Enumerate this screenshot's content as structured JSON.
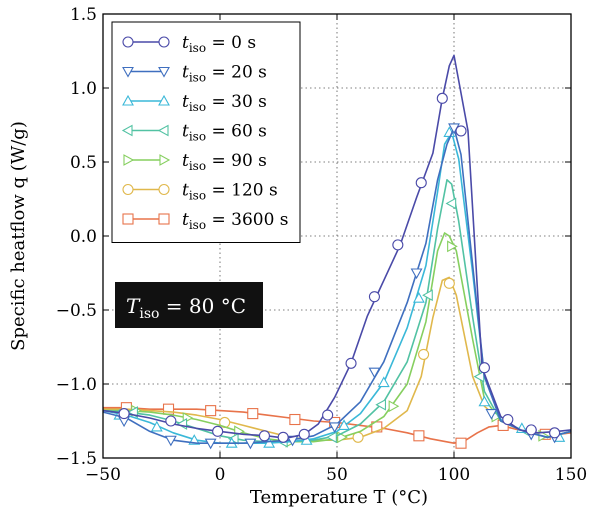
{
  "chart_data": {
    "type": "line",
    "xlabel": "Temperature T (°C)",
    "ylabel": "Specific heatflow q (W/g)",
    "xlim": [
      -50,
      150
    ],
    "ylim": [
      -1.5,
      1.5
    ],
    "xticks": [
      -50,
      0,
      50,
      100,
      150
    ],
    "yticks": [
      -1.5,
      -1.0,
      -0.5,
      0.0,
      0.5,
      1.0,
      1.5
    ],
    "xtick_labels": [
      "−50",
      "0",
      "50",
      "100",
      "150"
    ],
    "ytick_labels": [
      "−1.5",
      "−1.0",
      "−0.5",
      "0.0",
      "0.5",
      "1.0",
      "1.5"
    ],
    "grid": true,
    "legend_position": "top-left",
    "annotation": "T_iso = 80 °C",
    "series": [
      {
        "name": "t_iso = 0 s",
        "color": "#4a4aa8",
        "marker": "circle",
        "x": [
          -50,
          -40,
          -30,
          -20,
          -10,
          0,
          10,
          20,
          25,
          30,
          36,
          42,
          49,
          56,
          63,
          70,
          77,
          84,
          91,
          95,
          98,
          100,
          102,
          106,
          112,
          120,
          128,
          136,
          144,
          150
        ],
        "y": [
          -1.18,
          -1.2,
          -1.23,
          -1.27,
          -1.3,
          -1.32,
          -1.34,
          -1.35,
          -1.36,
          -1.36,
          -1.34,
          -1.27,
          -1.09,
          -0.86,
          -0.54,
          -0.3,
          -0.06,
          0.26,
          0.56,
          0.93,
          1.15,
          1.22,
          1.05,
          0.71,
          -0.89,
          -1.22,
          -1.31,
          -1.33,
          -1.32,
          -1.31
        ],
        "markers_x": [
          -41,
          -21,
          -1,
          19,
          27,
          36,
          46,
          56,
          66,
          76,
          86,
          95,
          103,
          113,
          123,
          133,
          143
        ],
        "markers_y": [
          -1.2,
          -1.25,
          -1.32,
          -1.35,
          -1.36,
          -1.34,
          -1.21,
          -0.86,
          -0.41,
          -0.06,
          0.36,
          0.93,
          0.71,
          -0.89,
          -1.24,
          -1.31,
          -1.33
        ]
      },
      {
        "name": "t_iso = 20 s",
        "color": "#3f6fbf",
        "marker": "triangle_down",
        "x": [
          -50,
          -40,
          -30,
          -20,
          -10,
          0,
          10,
          20,
          30,
          40,
          50,
          60,
          70,
          80,
          88,
          93,
          97,
          100,
          103,
          108,
          113,
          120,
          130,
          140,
          150
        ],
        "y": [
          -1.19,
          -1.23,
          -1.32,
          -1.38,
          -1.4,
          -1.4,
          -1.4,
          -1.39,
          -1.38,
          -1.35,
          -1.27,
          -1.12,
          -0.85,
          -0.45,
          -0.05,
          0.38,
          0.62,
          0.73,
          0.55,
          -0.2,
          -0.95,
          -1.25,
          -1.32,
          -1.36,
          -1.32
        ],
        "markers_x": [
          -41,
          -21,
          -4,
          13,
          31,
          49,
          66,
          84,
          100,
          116,
          133,
          143
        ],
        "markers_y": [
          -1.25,
          -1.38,
          -1.4,
          -1.4,
          -1.38,
          -1.29,
          -0.92,
          -0.25,
          0.73,
          -1.2,
          -1.34,
          -1.36
        ]
      },
      {
        "name": "t_iso = 30 s",
        "color": "#3ab8d8",
        "marker": "triangle_up",
        "x": [
          -50,
          -40,
          -30,
          -20,
          -10,
          0,
          10,
          20,
          30,
          40,
          50,
          60,
          70,
          80,
          88,
          93,
          96,
          99,
          102,
          108,
          113,
          120,
          130,
          140,
          150
        ],
        "y": [
          -1.18,
          -1.21,
          -1.26,
          -1.33,
          -1.38,
          -1.4,
          -1.4,
          -1.4,
          -1.39,
          -1.37,
          -1.32,
          -1.2,
          -0.99,
          -0.62,
          -0.2,
          0.3,
          0.62,
          0.7,
          0.52,
          -0.25,
          -0.95,
          -1.24,
          -1.32,
          -1.36,
          -1.32
        ],
        "markers_x": [
          -43,
          -27,
          -11,
          5,
          21,
          37,
          53,
          70,
          85,
          98,
          113,
          129,
          145
        ],
        "markers_y": [
          -1.21,
          -1.29,
          -1.38,
          -1.4,
          -1.4,
          -1.38,
          -1.28,
          -0.99,
          -0.42,
          0.7,
          -1.12,
          -1.3,
          -1.36
        ]
      },
      {
        "name": "t_iso = 60 s",
        "color": "#52c2a3",
        "marker": "triangle_left",
        "x": [
          -50,
          -40,
          -30,
          -20,
          -10,
          0,
          10,
          20,
          30,
          40,
          50,
          60,
          70,
          80,
          88,
          93,
          97,
          99,
          102,
          108,
          113,
          120,
          130,
          140,
          150
        ],
        "y": [
          -1.18,
          -1.19,
          -1.21,
          -1.25,
          -1.3,
          -1.35,
          -1.38,
          -1.39,
          -1.39,
          -1.38,
          -1.35,
          -1.27,
          -1.12,
          -0.85,
          -0.45,
          0.05,
          0.38,
          0.35,
          0.1,
          -0.55,
          -1.05,
          -1.25,
          -1.32,
          -1.36,
          -1.32
        ],
        "markers_x": [
          -37,
          -16,
          6,
          27,
          48,
          69,
          89,
          99,
          111,
          131
        ],
        "markers_y": [
          -1.19,
          -1.27,
          -1.37,
          -1.39,
          -1.36,
          -1.14,
          -0.4,
          0.22,
          -0.95,
          -1.32
        ]
      },
      {
        "name": "t_iso = 90 s",
        "color": "#86cf5f",
        "marker": "triangle_right",
        "x": [
          -50,
          -40,
          -30,
          -20,
          -10,
          0,
          10,
          20,
          30,
          40,
          50,
          60,
          70,
          80,
          88,
          93,
          96,
          98,
          101,
          108,
          113,
          120,
          130,
          140,
          150
        ],
        "y": [
          -1.18,
          -1.18,
          -1.19,
          -1.21,
          -1.24,
          -1.28,
          -1.33,
          -1.37,
          -1.39,
          -1.39,
          -1.37,
          -1.32,
          -1.22,
          -1.0,
          -0.58,
          -0.1,
          0.02,
          0.0,
          -0.1,
          -0.7,
          -1.1,
          -1.25,
          -1.32,
          -1.36,
          -1.32
        ],
        "markers_x": [
          -36,
          -14,
          8,
          30,
          52,
          74,
          99,
          118,
          138
        ],
        "markers_y": [
          -1.18,
          -1.23,
          -1.32,
          -1.39,
          -1.36,
          -1.15,
          -0.07,
          -1.22,
          -1.35
        ]
      },
      {
        "name": "t_iso = 120 s",
        "color": "#e0b84c",
        "marker": "circle",
        "x": [
          -50,
          -40,
          -30,
          -20,
          -10,
          0,
          10,
          20,
          30,
          40,
          50,
          60,
          70,
          80,
          86,
          91,
          95,
          98,
          101,
          108,
          113,
          120,
          130,
          140,
          150
        ],
        "y": [
          -1.17,
          -1.17,
          -1.18,
          -1.19,
          -1.21,
          -1.24,
          -1.28,
          -1.32,
          -1.36,
          -1.38,
          -1.38,
          -1.36,
          -1.3,
          -1.18,
          -0.95,
          -0.55,
          -0.3,
          -0.28,
          -0.4,
          -0.95,
          -1.15,
          -1.25,
          -1.32,
          -1.36,
          -1.32
        ],
        "markers_x": [
          2,
          59,
          87,
          98
        ],
        "markers_y": [
          -1.26,
          -1.36,
          -0.8,
          -0.32
        ]
      },
      {
        "name": "t_iso = 3600 s",
        "color": "#e8734a",
        "marker": "square",
        "x": [
          -50,
          -40,
          -30,
          -20,
          -10,
          0,
          10,
          20,
          30,
          40,
          50,
          60,
          70,
          80,
          90,
          100,
          105,
          110,
          115,
          120,
          125,
          130,
          135,
          140,
          150
        ],
        "y": [
          -1.16,
          -1.16,
          -1.17,
          -1.17,
          -1.17,
          -1.18,
          -1.19,
          -1.21,
          -1.23,
          -1.25,
          -1.26,
          -1.28,
          -1.3,
          -1.33,
          -1.37,
          -1.4,
          -1.38,
          -1.33,
          -1.29,
          -1.28,
          -1.3,
          -1.32,
          -1.34,
          -1.35,
          -1.33
        ],
        "markers_x": [
          -40,
          -22,
          -4,
          14,
          32,
          49,
          67,
          85,
          103,
          121,
          139
        ],
        "markers_y": [
          -1.16,
          -1.17,
          -1.18,
          -1.2,
          -1.24,
          -1.26,
          -1.29,
          -1.35,
          -1.4,
          -1.28,
          -1.34
        ]
      }
    ]
  }
}
